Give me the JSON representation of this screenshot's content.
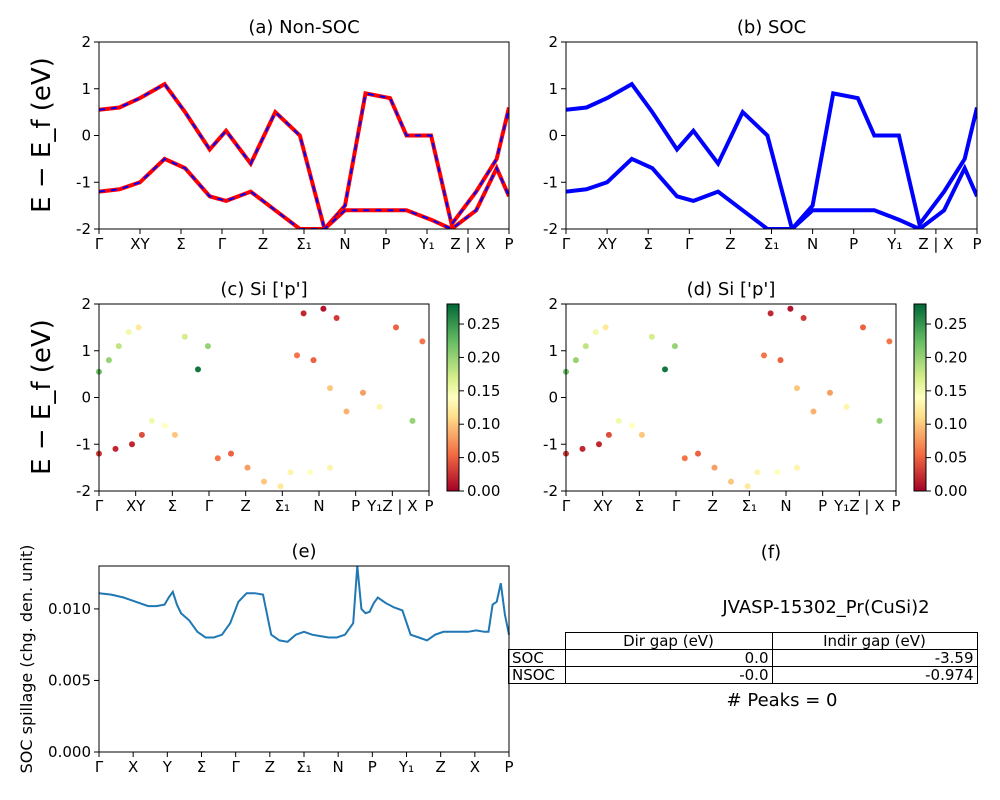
{
  "figure_id": "JVASP-15302_Pr(CuSi)2",
  "peaks_text": "# Peaks = 0",
  "colorbar_ticks": [
    "0.00",
    "0.05",
    "0.10",
    "0.15",
    "0.20",
    "0.25"
  ],
  "table": {
    "headers": [
      "Dir gap (eV)",
      "Indir gap (eV)"
    ],
    "rows": [
      {
        "label": "SOC",
        "dir": "0.0",
        "indir": "-3.59"
      },
      {
        "label": "NSOC",
        "dir": "-0.0",
        "indir": "-0.974"
      }
    ]
  },
  "chart_data": [
    {
      "type": "line",
      "title": "(a) Non-SOC",
      "ylabel": "E − E_f (eV)",
      "ylim": [
        -2,
        2
      ],
      "yticks": [
        -2,
        -1,
        0,
        1,
        2
      ],
      "xticks": [
        "Γ",
        "XY",
        "Σ",
        "Γ",
        "Z",
        "Σ₁",
        "N",
        "P",
        "Y₁",
        "Z | X",
        "P"
      ],
      "series_colors": [
        "#ff0000",
        "#0000ff"
      ],
      "bands": [
        {
          "x": [
            0,
            0.05,
            0.1,
            0.16,
            0.21,
            0.27,
            0.31,
            0.37,
            0.43,
            0.49,
            0.55,
            0.6,
            0.65,
            0.71,
            0.75,
            0.81,
            0.86,
            0.92,
            0.97,
            1.0
          ],
          "y": [
            0.55,
            0.6,
            0.8,
            1.1,
            0.5,
            -0.3,
            0.1,
            -0.6,
            0.5,
            0.0,
            -2.0,
            -1.5,
            0.9,
            0.8,
            0.0,
            0.0,
            -1.9,
            -1.2,
            -0.5,
            0.6
          ]
        },
        {
          "x": [
            0,
            0.05,
            0.1,
            0.16,
            0.21,
            0.27,
            0.31,
            0.37,
            0.43,
            0.49,
            0.55,
            0.6,
            0.65,
            0.71,
            0.75,
            0.81,
            0.86,
            0.92,
            0.97,
            1.0
          ],
          "y": [
            -1.2,
            -1.15,
            -1.0,
            -0.5,
            -0.7,
            -1.3,
            -1.4,
            -1.2,
            -1.6,
            -2.0,
            -2.0,
            -1.6,
            -1.6,
            -1.6,
            -1.6,
            -1.8,
            -2.0,
            -1.6,
            -0.7,
            -1.3
          ]
        }
      ]
    },
    {
      "type": "line",
      "title": "(b) SOC",
      "ylim": [
        -2,
        2
      ],
      "yticks": [
        -2,
        -1,
        0,
        1,
        2
      ],
      "xticks": [
        "Γ",
        "XY",
        "Σ",
        "Γ",
        "Z",
        "Σ₁",
        "N",
        "P",
        "Y₁",
        "Z | X",
        "P"
      ],
      "series_colors": [
        "#0000ff"
      ],
      "bands": [
        {
          "x": [
            0,
            0.05,
            0.1,
            0.16,
            0.21,
            0.27,
            0.31,
            0.37,
            0.43,
            0.49,
            0.55,
            0.6,
            0.65,
            0.71,
            0.75,
            0.81,
            0.86,
            0.92,
            0.97,
            1.0
          ],
          "y": [
            0.55,
            0.6,
            0.8,
            1.1,
            0.5,
            -0.3,
            0.1,
            -0.6,
            0.5,
            0.0,
            -2.0,
            -1.5,
            0.9,
            0.8,
            0.0,
            0.0,
            -1.9,
            -1.2,
            -0.5,
            0.6
          ]
        },
        {
          "x": [
            0,
            0.05,
            0.1,
            0.16,
            0.21,
            0.27,
            0.31,
            0.37,
            0.43,
            0.49,
            0.55,
            0.6,
            0.65,
            0.71,
            0.75,
            0.81,
            0.86,
            0.92,
            0.97,
            1.0
          ],
          "y": [
            -1.2,
            -1.15,
            -1.0,
            -0.5,
            -0.7,
            -1.3,
            -1.4,
            -1.2,
            -1.6,
            -2.0,
            -2.0,
            -1.6,
            -1.6,
            -1.6,
            -1.6,
            -1.8,
            -2.0,
            -1.6,
            -0.7,
            -1.3
          ]
        }
      ]
    },
    {
      "type": "scatter",
      "title": "(c)  Si ['p']",
      "ylabel": "E − E_f (eV)",
      "ylim": [
        -2,
        2
      ],
      "yticks": [
        -2,
        -1,
        0,
        1,
        2
      ],
      "xticks": [
        "Γ",
        "XY",
        "Σ",
        "Γ",
        "Z",
        "Σ₁",
        "N",
        "P",
        "Y₁Z | X",
        "P"
      ],
      "colorbar": {
        "min": 0.0,
        "max": 0.28,
        "cmap": "RdYlGn"
      },
      "points": [
        [
          0.0,
          0.55,
          0.22
        ],
        [
          0.03,
          0.8,
          0.2
        ],
        [
          0.06,
          1.1,
          0.18
        ],
        [
          0.09,
          1.4,
          0.15
        ],
        [
          0.12,
          1.5,
          0.12
        ],
        [
          0.0,
          -1.2,
          0.03
        ],
        [
          0.05,
          -1.1,
          0.02
        ],
        [
          0.1,
          -1.0,
          0.02
        ],
        [
          0.13,
          -0.8,
          0.04
        ],
        [
          0.16,
          -0.5,
          0.15
        ],
        [
          0.2,
          -0.6,
          0.14
        ],
        [
          0.23,
          -0.8,
          0.1
        ],
        [
          0.26,
          1.3,
          0.17
        ],
        [
          0.3,
          0.6,
          0.27
        ],
        [
          0.33,
          1.1,
          0.2
        ],
        [
          0.36,
          -1.3,
          0.06
        ],
        [
          0.4,
          -1.2,
          0.05
        ],
        [
          0.45,
          -1.5,
          0.08
        ],
        [
          0.55,
          -1.9,
          0.12
        ],
        [
          0.6,
          0.9,
          0.06
        ],
        [
          0.65,
          0.8,
          0.05
        ],
        [
          0.7,
          0.2,
          0.1
        ],
        [
          0.75,
          -0.3,
          0.09
        ],
        [
          0.8,
          0.1,
          0.08
        ],
        [
          0.85,
          -0.2,
          0.13
        ],
        [
          0.9,
          1.5,
          0.05
        ],
        [
          0.95,
          -0.5,
          0.2
        ],
        [
          0.98,
          1.2,
          0.06
        ],
        [
          0.62,
          1.8,
          0.02
        ],
        [
          0.68,
          1.9,
          0.01
        ],
        [
          0.72,
          1.7,
          0.03
        ],
        [
          0.5,
          -1.8,
          0.1
        ],
        [
          0.58,
          -1.6,
          0.13
        ],
        [
          0.64,
          -1.6,
          0.14
        ],
        [
          0.7,
          -1.5,
          0.13
        ]
      ]
    },
    {
      "type": "scatter",
      "title": "(d) Si ['p']",
      "ylim": [
        -2,
        2
      ],
      "yticks": [
        -2,
        -1,
        0,
        1,
        2
      ],
      "xticks": [
        "Γ",
        "XY",
        "Σ",
        "Γ",
        "Z",
        "Σ₁",
        "N",
        "P",
        "Y₁Z | X",
        "P"
      ],
      "colorbar": {
        "min": 0.0,
        "max": 0.28,
        "cmap": "RdYlGn"
      },
      "points": [
        [
          0.0,
          0.55,
          0.22
        ],
        [
          0.03,
          0.8,
          0.2
        ],
        [
          0.06,
          1.1,
          0.18
        ],
        [
          0.09,
          1.4,
          0.15
        ],
        [
          0.12,
          1.5,
          0.12
        ],
        [
          0.0,
          -1.2,
          0.03
        ],
        [
          0.05,
          -1.1,
          0.02
        ],
        [
          0.1,
          -1.0,
          0.02
        ],
        [
          0.13,
          -0.8,
          0.04
        ],
        [
          0.16,
          -0.5,
          0.15
        ],
        [
          0.2,
          -0.6,
          0.14
        ],
        [
          0.23,
          -0.8,
          0.1
        ],
        [
          0.26,
          1.3,
          0.17
        ],
        [
          0.3,
          0.6,
          0.27
        ],
        [
          0.33,
          1.1,
          0.2
        ],
        [
          0.36,
          -1.3,
          0.06
        ],
        [
          0.4,
          -1.2,
          0.05
        ],
        [
          0.45,
          -1.5,
          0.08
        ],
        [
          0.55,
          -1.9,
          0.12
        ],
        [
          0.6,
          0.9,
          0.06
        ],
        [
          0.65,
          0.8,
          0.05
        ],
        [
          0.7,
          0.2,
          0.1
        ],
        [
          0.75,
          -0.3,
          0.09
        ],
        [
          0.8,
          0.1,
          0.08
        ],
        [
          0.85,
          -0.2,
          0.13
        ],
        [
          0.9,
          1.5,
          0.05
        ],
        [
          0.95,
          -0.5,
          0.2
        ],
        [
          0.98,
          1.2,
          0.06
        ],
        [
          0.62,
          1.8,
          0.02
        ],
        [
          0.68,
          1.9,
          0.01
        ],
        [
          0.72,
          1.7,
          0.03
        ],
        [
          0.5,
          -1.8,
          0.1
        ],
        [
          0.58,
          -1.6,
          0.13
        ],
        [
          0.64,
          -1.6,
          0.14
        ],
        [
          0.7,
          -1.5,
          0.13
        ]
      ]
    },
    {
      "type": "line",
      "title": "(e)",
      "ylabel": "SOC spillage (chg. den. unit)",
      "ylim": [
        0,
        0.013
      ],
      "yticks": [
        "0.000",
        "0.005",
        "0.010"
      ],
      "xticks": [
        "Γ",
        "X",
        "Y",
        "Σ",
        "Γ",
        "Z",
        "Σ₁",
        "N",
        "P",
        "Y₁",
        "Z",
        "X",
        "P"
      ],
      "color": "#1f77b4",
      "series": [
        {
          "x": [
            0,
            0.03,
            0.06,
            0.09,
            0.12,
            0.14,
            0.16,
            0.17,
            0.18,
            0.19,
            0.2,
            0.22,
            0.24,
            0.26,
            0.28,
            0.3,
            0.32,
            0.34,
            0.36,
            0.38,
            0.4,
            0.42,
            0.44,
            0.46,
            0.48,
            0.5,
            0.52,
            0.54,
            0.56,
            0.58,
            0.6,
            0.62,
            0.63,
            0.64,
            0.65,
            0.66,
            0.67,
            0.68,
            0.7,
            0.72,
            0.74,
            0.76,
            0.78,
            0.8,
            0.82,
            0.84,
            0.86,
            0.88,
            0.9,
            0.92,
            0.94,
            0.95,
            0.96,
            0.97,
            0.98,
            0.99,
            1.0
          ],
          "y": [
            0.0111,
            0.011,
            0.0108,
            0.0105,
            0.0102,
            0.0102,
            0.0103,
            0.0108,
            0.0112,
            0.0103,
            0.0097,
            0.0092,
            0.0084,
            0.008,
            0.008,
            0.0082,
            0.009,
            0.0105,
            0.0111,
            0.0111,
            0.011,
            0.0082,
            0.0078,
            0.0077,
            0.0082,
            0.0084,
            0.0082,
            0.0081,
            0.008,
            0.008,
            0.0082,
            0.009,
            0.013,
            0.01,
            0.0097,
            0.0098,
            0.0104,
            0.0108,
            0.0104,
            0.0101,
            0.0099,
            0.0082,
            0.008,
            0.0078,
            0.0082,
            0.0084,
            0.0084,
            0.0084,
            0.0084,
            0.0085,
            0.0084,
            0.0084,
            0.0103,
            0.0105,
            0.0118,
            0.0096,
            0.0082
          ]
        }
      ]
    }
  ]
}
